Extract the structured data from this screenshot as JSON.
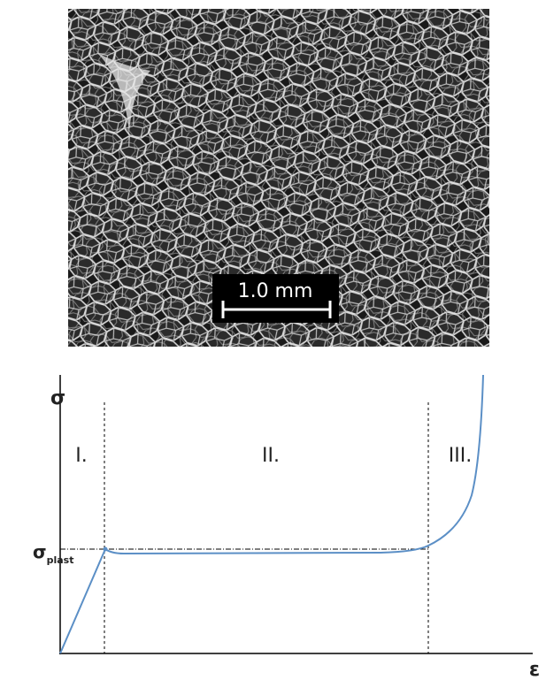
{
  "image": {
    "scale_bar": "1.0 mm"
  },
  "diagram": {
    "y_axis_label": "σ",
    "plateau_label": {
      "symbol": "σ",
      "subscript": "plast"
    },
    "regions": [
      "I.",
      "II.",
      "III."
    ],
    "x_axis_label": "ε"
  }
}
